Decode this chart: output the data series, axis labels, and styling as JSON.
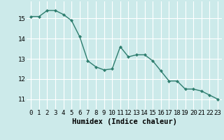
{
  "x": [
    0,
    1,
    2,
    3,
    4,
    5,
    6,
    7,
    8,
    9,
    10,
    11,
    12,
    13,
    14,
    15,
    16,
    17,
    18,
    19,
    20,
    21,
    22,
    23
  ],
  "y": [
    15.1,
    15.1,
    15.4,
    15.4,
    15.2,
    14.9,
    14.1,
    12.9,
    12.6,
    12.45,
    12.5,
    13.6,
    13.1,
    13.2,
    13.2,
    12.9,
    12.4,
    11.9,
    11.9,
    11.5,
    11.5,
    11.4,
    11.2,
    11.0
  ],
  "line_color": "#2e7d6e",
  "marker": "D",
  "marker_size": 2.2,
  "bg_color": "#cceaea",
  "grid_color_major": "#ffffff",
  "grid_color_minor": "#deb8b8",
  "xlabel": "Humidex (Indice chaleur)",
  "xlabel_fontsize": 7.5,
  "ylabel_ticks": [
    11,
    12,
    13,
    14,
    15
  ],
  "xlim": [
    -0.5,
    23.5
  ],
  "ylim": [
    10.5,
    15.85
  ],
  "xtick_labels": [
    "0",
    "1",
    "2",
    "3",
    "4",
    "5",
    "6",
    "7",
    "8",
    "9",
    "10",
    "11",
    "12",
    "13",
    "14",
    "15",
    "16",
    "17",
    "18",
    "19",
    "20",
    "21",
    "22",
    "23"
  ],
  "tick_fontsize": 6.5
}
